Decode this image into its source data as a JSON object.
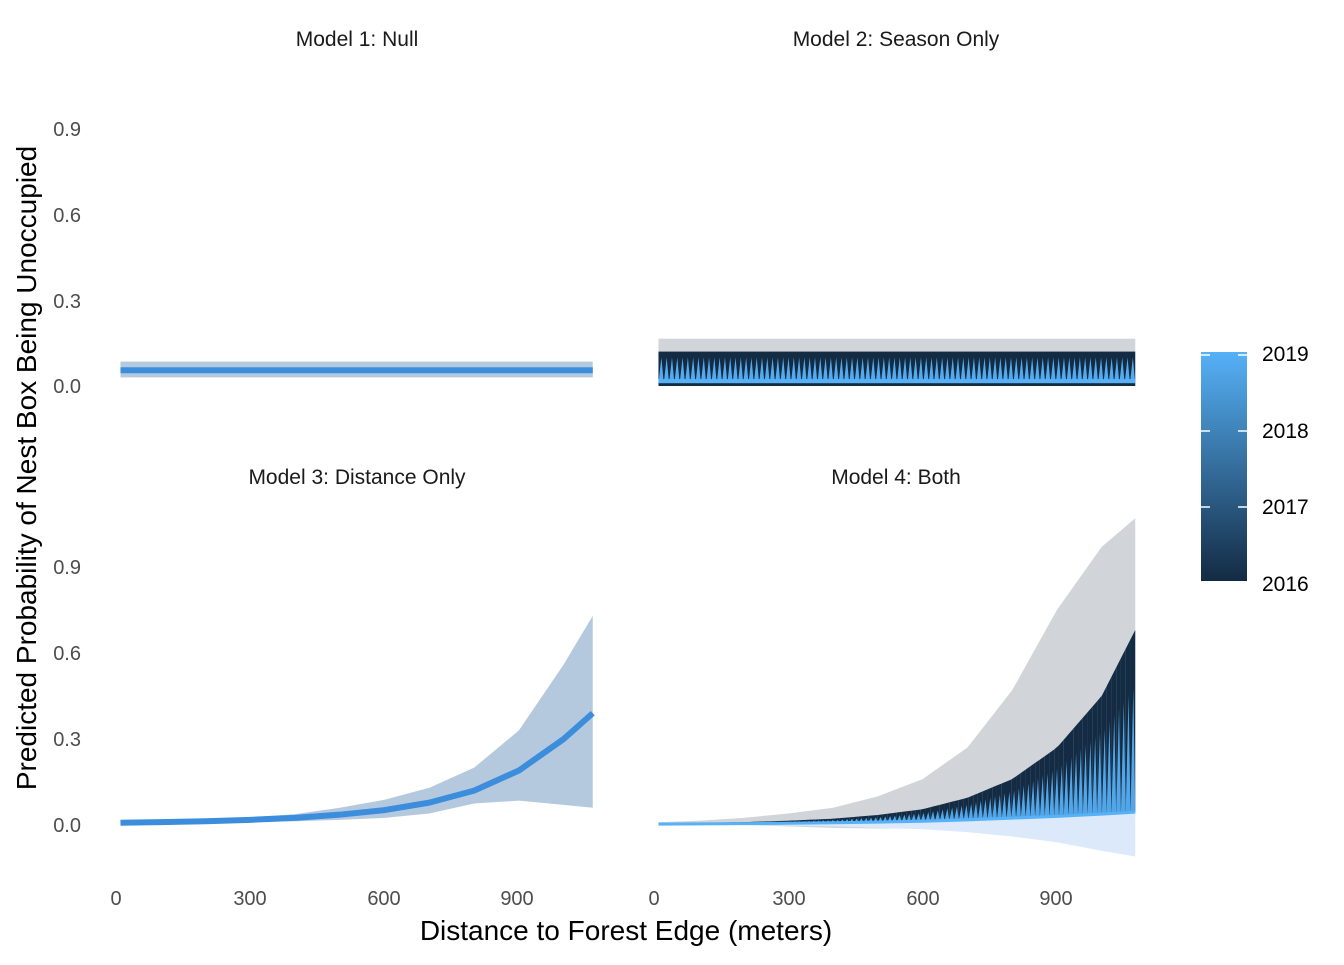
{
  "colors": {
    "line_single": "#3c8ddc",
    "band_single": "#b4c9de",
    "band_grey": "#d1d4d9",
    "band_light_blue": "#dbe9fb",
    "season_low": "#132b43",
    "season_high": "#56b1f7"
  },
  "chart_data": {
    "type": "line",
    "facet_layout": "2x2",
    "xlabel": "Distance to Forest Edge (meters)",
    "ylabel": "Predicted Probability of Nest Box Being Unoccupied",
    "x_ticks": [
      "0",
      "300",
      "600",
      "900"
    ],
    "y_ticks": [
      "0.0",
      "0.3",
      "0.6",
      "0.9"
    ],
    "xlim": [
      0,
      1075
    ],
    "ylim": [
      -0.09,
      1.08
    ],
    "grid": false,
    "legend": {
      "position": "right",
      "type": "colorbar",
      "labels": [
        "2019",
        "2018",
        "2017",
        "2016"
      ],
      "range": [
        2016,
        2019
      ]
    },
    "panels": [
      {
        "title": "Model 1: Null",
        "kind": "flat",
        "x_range": [
          10,
          1065
        ],
        "fit": 0.055,
        "band": [
          0.03,
          0.085
        ]
      },
      {
        "title": "Model 2: Season Only",
        "kind": "flat_season",
        "x_range": [
          10,
          1075
        ],
        "fit_low": 0.1,
        "fit_high": 0.01,
        "band": [
          0.0,
          0.165
        ],
        "band_season": [
          0.0,
          0.12
        ]
      },
      {
        "title": "Model 3: Distance Only",
        "kind": "logistic",
        "x_range": [
          10,
          1065
        ],
        "x": [
          10,
          100,
          200,
          300,
          400,
          500,
          600,
          700,
          800,
          900,
          1000,
          1065
        ],
        "fit": [
          0.008,
          0.01,
          0.013,
          0.018,
          0.025,
          0.036,
          0.052,
          0.078,
          0.12,
          0.19,
          0.3,
          0.39
        ],
        "lower": [
          0.004,
          0.006,
          0.008,
          0.01,
          0.013,
          0.018,
          0.025,
          0.04,
          0.075,
          0.085,
          0.07,
          0.06
        ],
        "upper": [
          0.012,
          0.015,
          0.02,
          0.027,
          0.038,
          0.06,
          0.088,
          0.13,
          0.2,
          0.33,
          0.56,
          0.73
        ]
      },
      {
        "title": "Model 4: Both",
        "kind": "logistic_season",
        "x_range": [
          10,
          1075
        ],
        "x": [
          10,
          100,
          200,
          300,
          400,
          500,
          600,
          700,
          800,
          900,
          1000,
          1075
        ],
        "fit_low": [
          0.005,
          0.007,
          0.01,
          0.015,
          0.022,
          0.035,
          0.055,
          0.095,
          0.16,
          0.27,
          0.45,
          0.68
        ],
        "fit_high": [
          0.003,
          0.004,
          0.005,
          0.006,
          0.008,
          0.01,
          0.013,
          0.018,
          0.024,
          0.03,
          0.038,
          0.045
        ],
        "lower_grey": [
          0.0,
          0.0,
          0.0,
          -0.005,
          -0.01,
          -0.012,
          -0.012,
          -0.008,
          0.0,
          0.01,
          0.02,
          0.03
        ],
        "upper_grey": [
          0.01,
          0.015,
          0.025,
          0.04,
          0.06,
          0.1,
          0.16,
          0.27,
          0.47,
          0.75,
          0.97,
          1.07
        ],
        "lower_light": [
          0.0,
          0.0,
          0.0,
          -0.002,
          -0.005,
          -0.01,
          -0.015,
          -0.025,
          -0.04,
          -0.06,
          -0.09,
          -0.11
        ],
        "upper_light": [
          0.005,
          0.006,
          0.008,
          0.01,
          0.013,
          0.016,
          0.02,
          0.025,
          0.03,
          0.036,
          0.042,
          0.048
        ]
      }
    ]
  }
}
